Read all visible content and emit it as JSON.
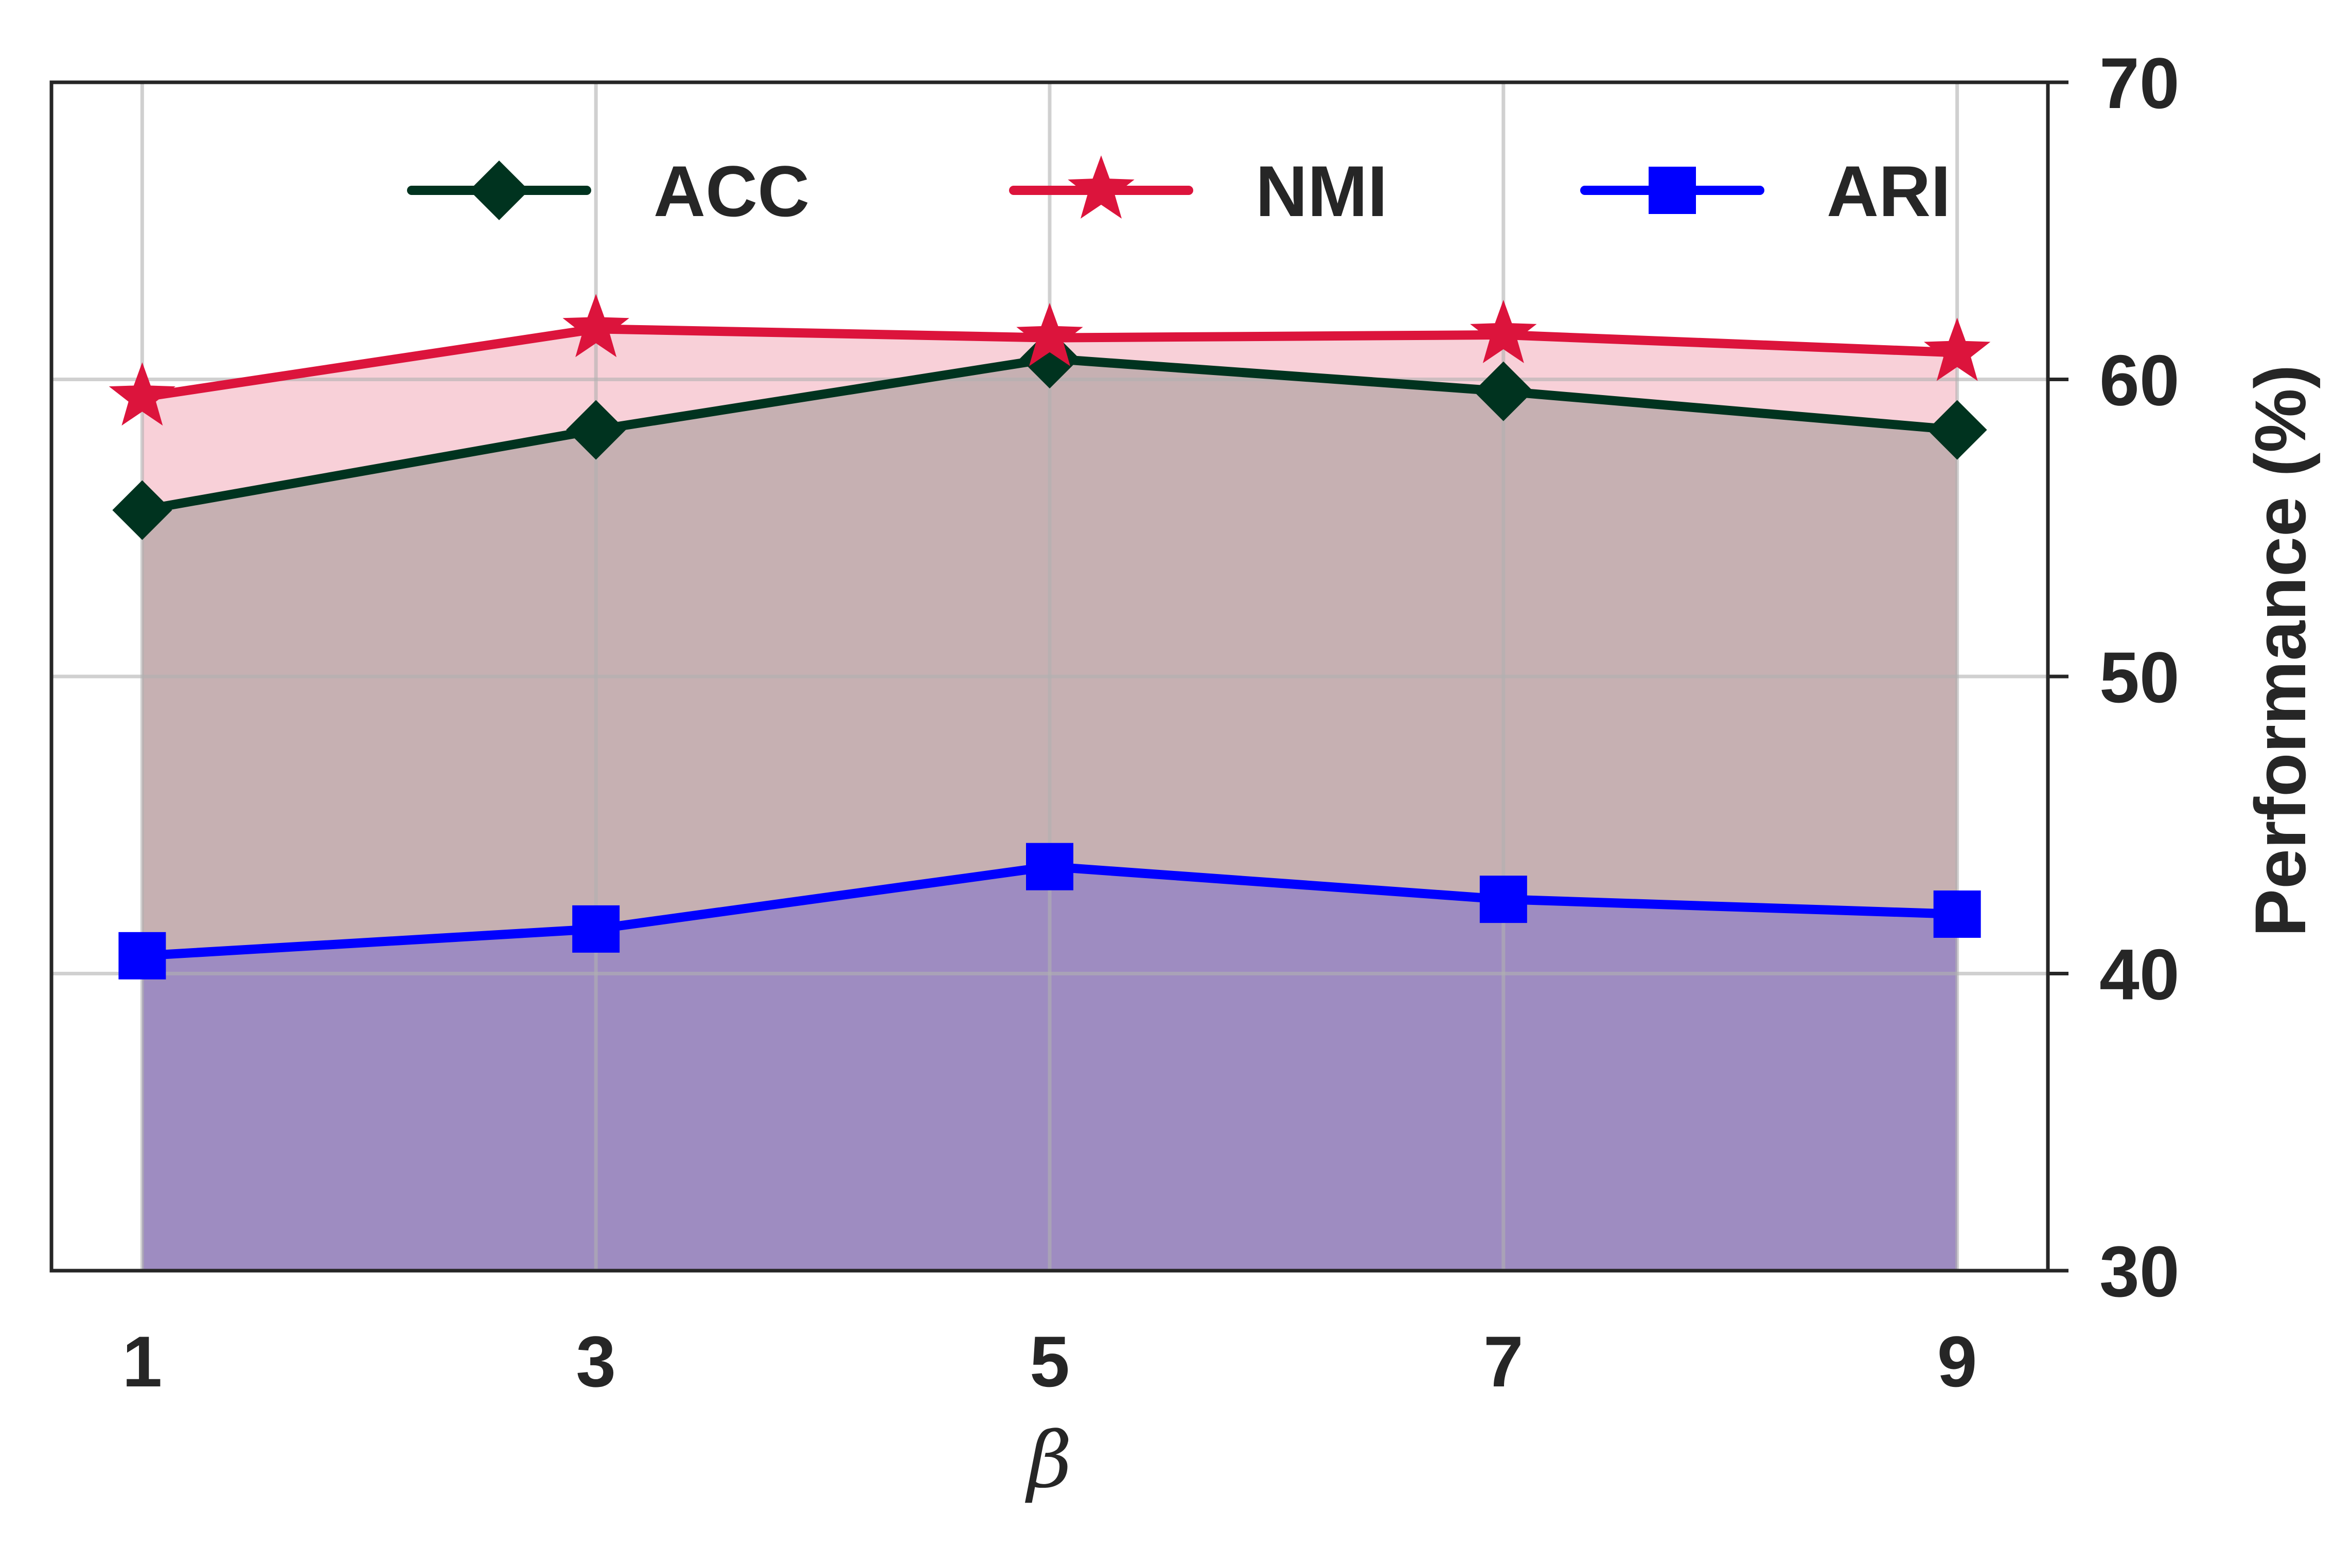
{
  "chart_data": {
    "type": "area",
    "x": [
      1,
      3,
      5,
      7,
      9
    ],
    "x_tick_labels": [
      "1",
      "3",
      "5",
      "7",
      "9"
    ],
    "xlabel": "β",
    "ylabel": "Performance (%)",
    "y_axis_side": "right",
    "ylim": [
      30,
      70
    ],
    "y_ticks": [
      30,
      40,
      50,
      60,
      70
    ],
    "y_tick_labels": [
      "30",
      "40",
      "50",
      "60",
      "70"
    ],
    "grid": true,
    "legend_position": "top",
    "series": [
      {
        "name": "ACC",
        "values": [
          55.6,
          58.3,
          60.7,
          59.6,
          58.3
        ],
        "color": "#00331f",
        "marker": "diamond",
        "fill": "#cbd5d2"
      },
      {
        "name": "NMI",
        "values": [
          59.4,
          61.7,
          61.4,
          61.5,
          60.9
        ],
        "color": "#dc143c",
        "marker": "star",
        "fill": "#f6cfd7"
      },
      {
        "name": "ARI",
        "values": [
          40.6,
          41.5,
          43.6,
          42.5,
          42.0
        ],
        "color": "#0000ff",
        "marker": "square",
        "fill": "#cbcbfb"
      }
    ]
  }
}
